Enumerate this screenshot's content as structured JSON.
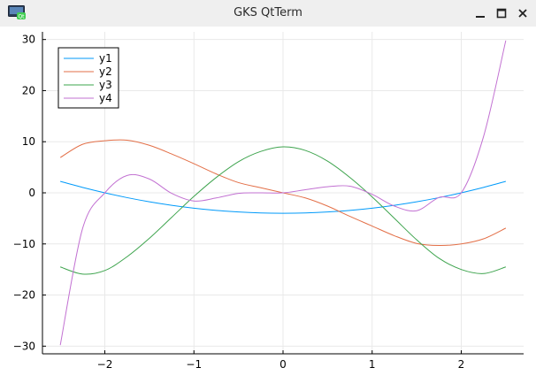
{
  "window": {
    "title": "GKS QtTerm",
    "app_icon": "qt-app-icon",
    "controls": [
      "minimize-icon",
      "maximize-icon",
      "close-icon"
    ]
  },
  "chart_data": {
    "type": "line",
    "title": "",
    "xlabel": "",
    "ylabel": "",
    "xlim": [
      -2.7,
      2.7
    ],
    "ylim": [
      -31.5,
      31.5
    ],
    "xticks": [
      -2,
      -1,
      0,
      1,
      2
    ],
    "yticks": [
      -30,
      -20,
      -10,
      0,
      10,
      20,
      30
    ],
    "xtick_labels": [
      "−2",
      "−1",
      "0",
      "1",
      "2"
    ],
    "ytick_labels": [
      "−30",
      "−20",
      "−10",
      "0",
      "10",
      "20",
      "30"
    ],
    "grid": true,
    "legend": "top-left",
    "x": [
      -2.5,
      -2.25,
      -2.0,
      -1.75,
      -1.5,
      -1.25,
      -1.0,
      -0.75,
      -0.5,
      -0.25,
      0.0,
      0.25,
      0.5,
      0.75,
      1.0,
      1.25,
      1.5,
      1.75,
      2.0,
      2.25,
      2.5
    ],
    "series": [
      {
        "name": "y1",
        "color": "#009AFA",
        "values": [
          2.25,
          1.06,
          0.0,
          -0.94,
          -1.75,
          -2.44,
          -3.0,
          -3.44,
          -3.75,
          -3.94,
          -4.0,
          -3.94,
          -3.75,
          -3.44,
          -3.0,
          -2.44,
          -1.75,
          -0.94,
          0.0,
          1.06,
          2.25
        ]
      },
      {
        "name": "y2",
        "color": "#E36F47",
        "values": [
          6.9,
          9.5,
          10.2,
          10.3,
          9.3,
          7.6,
          5.7,
          3.7,
          2.0,
          1.0,
          0.0,
          -1.0,
          -2.6,
          -4.6,
          -6.5,
          -8.4,
          -9.9,
          -10.3,
          -10.0,
          -9.0,
          -6.9
        ]
      },
      {
        "name": "y3",
        "color": "#3EA44E",
        "values": [
          -14.5,
          -15.9,
          -15.2,
          -12.5,
          -8.9,
          -4.8,
          -0.7,
          3.0,
          6.1,
          8.1,
          9.0,
          8.3,
          6.2,
          3.0,
          -0.8,
          -5.0,
          -9.2,
          -12.8,
          -15.0,
          -15.8,
          -14.5
        ]
      },
      {
        "name": "y4",
        "color": "#C271D2",
        "values": [
          -29.8,
          -7.0,
          0.0,
          3.4,
          2.7,
          -0.1,
          -1.6,
          -1.0,
          -0.1,
          0.0,
          0.0,
          0.6,
          1.2,
          1.3,
          -0.3,
          -2.6,
          -3.5,
          -0.9,
          0.0,
          11.0,
          29.8
        ]
      }
    ]
  }
}
